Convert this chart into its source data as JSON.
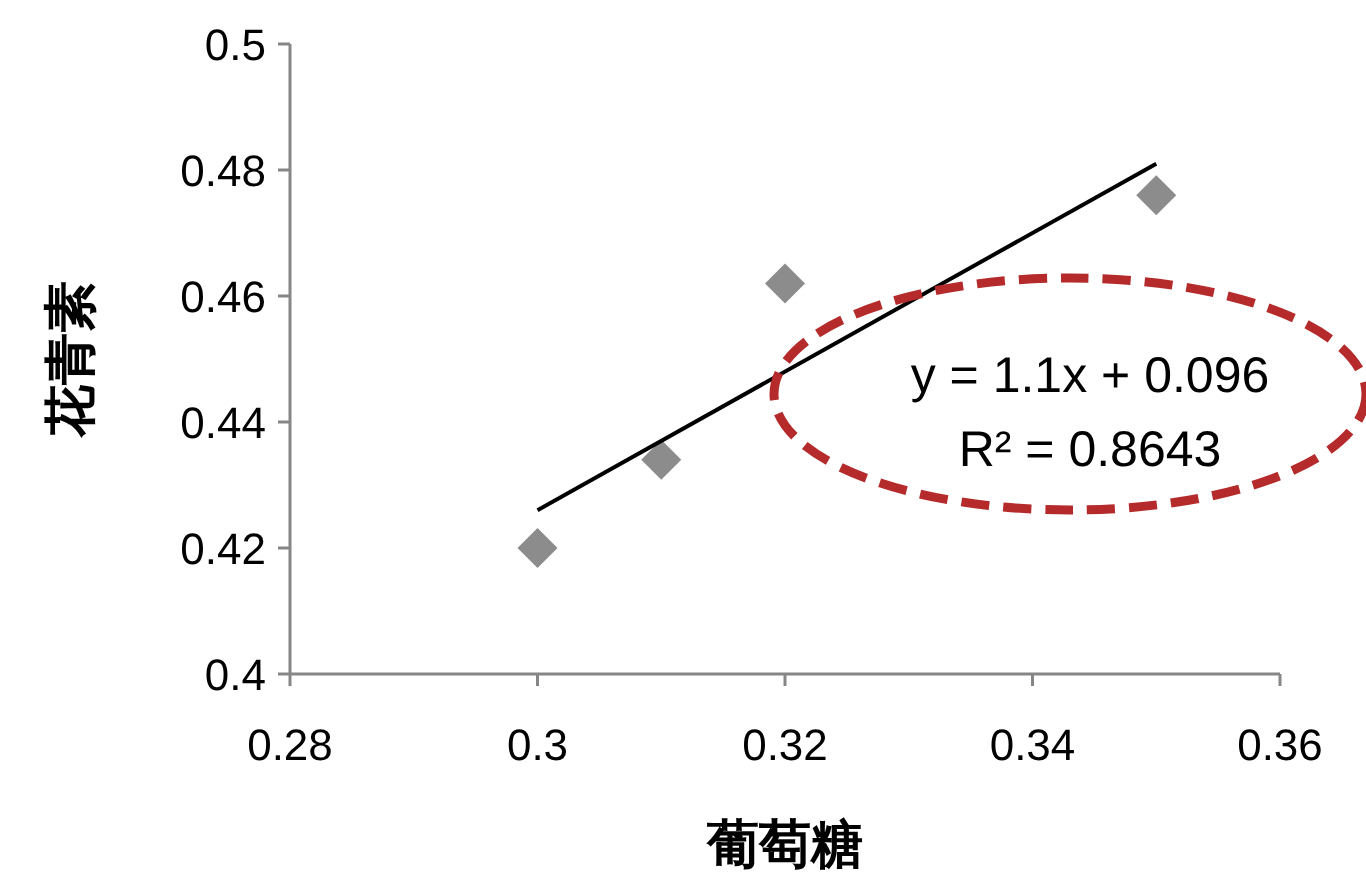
{
  "chart_data": {
    "type": "scatter",
    "xlabel": "葡萄糖",
    "ylabel": "花青素",
    "xlim": [
      0.28,
      0.36
    ],
    "ylim": [
      0.4,
      0.5
    ],
    "xticks": [
      0.28,
      0.3,
      0.32,
      0.34,
      0.36
    ],
    "yticks": [
      0.4,
      0.42,
      0.44,
      0.46,
      0.48,
      0.5
    ],
    "series": [
      {
        "type": "scatter",
        "marker": "diamond",
        "color": "#8c8c8c",
        "x": [
          0.3,
          0.31,
          0.32,
          0.35
        ],
        "values": [
          0.42,
          0.434,
          0.462,
          0.476
        ]
      },
      {
        "type": "line",
        "marker": "none",
        "color": "#000000",
        "x": [
          0.3,
          0.35
        ],
        "values": [
          0.426,
          0.481
        ]
      }
    ],
    "annotations": [
      "y = 1.1x + 0.096",
      "R² = 0.8643"
    ]
  }
}
